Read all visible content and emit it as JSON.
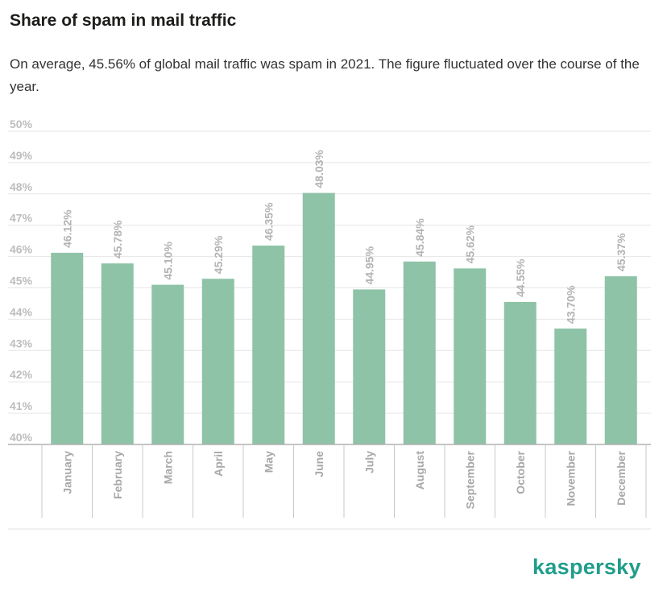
{
  "header": {
    "title": "Share of spam in mail traffic",
    "subtitle": "On average, 45.56% of global mail traffic was spam in 2021. The figure fluctuated over the course of the year."
  },
  "brand": {
    "logo_text": "kaspersky",
    "accent": "#1f9e8b"
  },
  "colors": {
    "bar": "#8ec3a7",
    "grid": "#e6e6e6",
    "axis": "#bdbdbd"
  },
  "chart_data": {
    "type": "bar",
    "title": "Share of spam in mail traffic",
    "xlabel": "",
    "ylabel": "",
    "ylim": [
      40,
      50
    ],
    "grid": true,
    "categories": [
      "January",
      "February",
      "March",
      "April",
      "May",
      "June",
      "July",
      "August",
      "September",
      "October",
      "November",
      "December"
    ],
    "values": [
      46.12,
      45.78,
      45.1,
      45.29,
      46.35,
      48.03,
      44.95,
      45.84,
      45.62,
      44.55,
      43.7,
      45.37
    ],
    "value_labels": [
      "46.12%",
      "45.78%",
      "45.10%",
      "45.29%",
      "46.35%",
      "48.03%",
      "44.95%",
      "45.84%",
      "45.62%",
      "44.55%",
      "43.70%",
      "45.37%"
    ],
    "y_ticks": [
      40,
      41,
      42,
      43,
      44,
      45,
      46,
      47,
      48,
      49,
      50
    ],
    "y_tick_labels": [
      "40%",
      "41%",
      "42%",
      "43%",
      "44%",
      "45%",
      "46%",
      "47%",
      "48%",
      "49%",
      "50%"
    ]
  }
}
